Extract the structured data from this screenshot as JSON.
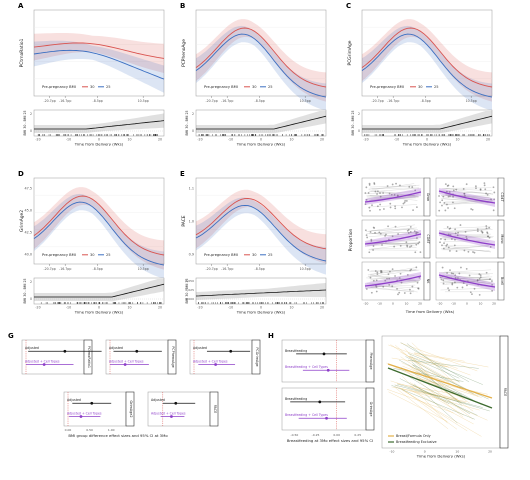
{
  "panels": {
    "letters": [
      "A",
      "B",
      "C",
      "D",
      "E",
      "F",
      "G",
      "H"
    ]
  },
  "colors": {
    "bmi30": "#d9534f",
    "bmi25": "#3b6fc2",
    "diff": "#111111",
    "purple": "#8e3fc9",
    "formula": "#e3b04a",
    "exclusive": "#3d6b2f"
  },
  "chart_data": [
    {
      "id": "A",
      "type": "line",
      "ylabel": "PCtrnaRatio1",
      "xlabel": "Time from Delivery (Wks)",
      "legend_title": "Pre-pregnancy BMI",
      "series": [
        {
          "name": "30"
        },
        {
          "name": "25"
        }
      ],
      "x_ticks": [
        "-20",
        "-10",
        "0",
        "10",
        "20"
      ],
      "event_ticks": [
        "-20.7pp",
        "-16.7pp",
        "-8.5pp",
        "10.5pp"
      ],
      "diff_ylabel": "BMI 30 - BMI 25",
      "diff_ylim": [
        0,
        2
      ]
    },
    {
      "id": "B",
      "type": "line",
      "ylabel": "PCPhenoAge",
      "xlabel": "Time from Delivery (Wks)",
      "legend_title": "Pre-pregnancy BMI",
      "series": [
        {
          "name": "30"
        },
        {
          "name": "25"
        }
      ],
      "x_ticks": [
        "-20",
        "-10",
        "0",
        "10",
        "20"
      ],
      "event_ticks": [
        "-20.7pp",
        "-16.7pp",
        "-8.5pp",
        "10.5pp"
      ],
      "diff_ylabel": "BMI 30 - BMI 25",
      "diff_ylim": [
        0,
        2
      ]
    },
    {
      "id": "C",
      "type": "line",
      "ylabel": "PCGrimAge",
      "xlabel": "Time from Delivery (Wks)",
      "legend_title": "Pre-pregnancy BMI",
      "series": [
        {
          "name": "30"
        },
        {
          "name": "25"
        }
      ],
      "x_ticks": [
        "-20",
        "-10",
        "0",
        "10",
        "20"
      ],
      "event_ticks": [
        "-20.7pp",
        "-16.7pp",
        "-8.5pp",
        "10.5pp"
      ],
      "diff_ylabel": "BMI 30 - BMI 25",
      "diff_ylim": [
        0,
        2
      ]
    },
    {
      "id": "D",
      "type": "line",
      "ylabel": "GrimAge2",
      "xlabel": "Time from Delivery (Wks)",
      "legend_title": "Pre-pregnancy BMI",
      "series": [
        {
          "name": "30"
        },
        {
          "name": "25"
        }
      ],
      "y_ticks": [
        "40.0",
        "42.5",
        "45.0",
        "47.5"
      ],
      "x_ticks": [
        "-20",
        "-10",
        "0",
        "10",
        "20"
      ],
      "event_ticks": [
        "-20.7pp",
        "-16.7pp",
        "-8.5pp",
        "10.5pp"
      ],
      "diff_ylabel": "BMI 30 - BMI 25",
      "diff_ylim": [
        0,
        2
      ]
    },
    {
      "id": "E",
      "type": "line",
      "ylabel": "PACE",
      "xlabel": "Time from Delivery (Wks)",
      "legend_title": "Pre-pregnancy BMI",
      "series": [
        {
          "name": "30"
        },
        {
          "name": "25"
        }
      ],
      "y_ticks": [
        "0.9",
        "1.0",
        "1.1"
      ],
      "x_ticks": [
        "-20",
        "-10",
        "0",
        "10",
        "20"
      ],
      "event_ticks": [
        "-20.7pp",
        "-16.7pp",
        "-8.5pp",
        "10.5pp"
      ],
      "diff_ylabel": "BMI 30 - BMI 25",
      "diff_yticks": [
        "0.000",
        "0.025",
        "0.050"
      ]
    },
    {
      "id": "F",
      "type": "scatter",
      "ylabel": "Proportion",
      "xlabel": "Time from Delivery (Wks)",
      "facets": [
        "Gran",
        "CD4T",
        "CD8T",
        "Mono",
        "NK",
        "Bcell"
      ],
      "x_ticks": [
        "-20",
        "-10",
        "0",
        "10",
        "20"
      ]
    },
    {
      "id": "G",
      "type": "scatter",
      "xlabel": "BMI group difference effect sizes and 95% CI at 3Mo",
      "facets": [
        "PCtrnaRatio1",
        "PCPhenoAge",
        "PCGrimAge",
        "GrimAge2",
        "PACE"
      ],
      "rows": [
        "Adjusted",
        "Adjusted + Cell Types"
      ],
      "x_ticks": [
        "0.00",
        "0.25",
        "0.50",
        "0.75",
        "1.00",
        "1.25"
      ]
    },
    {
      "id": "H",
      "type": "scatter",
      "xlabel": "Breastfeeding at 3Mo effect sizes and 95% CI",
      "facets": [
        "PhenoAge",
        "GrimAge"
      ],
      "rows": [
        "Breastfeeding",
        "Breastfeeding + Cell Types"
      ],
      "x_ticks": [
        "-0.50",
        "-0.25",
        "0.00",
        "0.25"
      ]
    },
    {
      "id": "H2",
      "type": "line",
      "facet": "PACE",
      "xlabel": "Time from Delivery (Wks)",
      "x_ticks": [
        "-10",
        "0",
        "10",
        "20"
      ],
      "legend": [
        "Breast/Formula Only",
        "Breastfeeding Exclusive"
      ]
    }
  ]
}
